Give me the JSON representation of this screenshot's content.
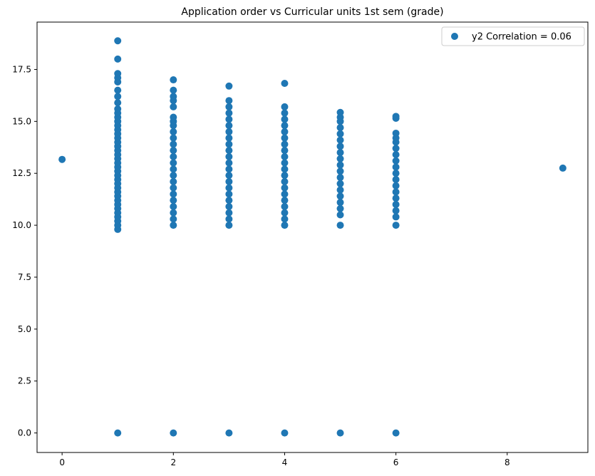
{
  "chart_data": {
    "type": "scatter",
    "title": "Application order vs Curricular units 1st sem (grade)",
    "xlabel": "",
    "ylabel": "",
    "xlim": [
      -0.45,
      9.45
    ],
    "ylim": [
      -0.94,
      19.78
    ],
    "xticks": [
      0,
      2,
      4,
      6,
      8
    ],
    "xtick_labels": [
      "0",
      "2",
      "4",
      "6",
      "8"
    ],
    "yticks": [
      0.0,
      2.5,
      5.0,
      7.5,
      10.0,
      12.5,
      15.0,
      17.5
    ],
    "ytick_labels": [
      "0.0",
      "2.5",
      "5.0",
      "7.5",
      "10.0",
      "12.5",
      "15.0",
      "17.5"
    ],
    "grid": false,
    "legend_position": "top-right",
    "series": [
      {
        "name": "y2 Correlation = 0.06",
        "color": "#1f77b4",
        "points": [
          [
            0,
            13.17
          ],
          [
            1,
            0.0
          ],
          [
            1,
            9.8
          ],
          [
            1,
            10.0
          ],
          [
            1,
            10.2
          ],
          [
            1,
            10.4
          ],
          [
            1,
            10.6
          ],
          [
            1,
            10.8
          ],
          [
            1,
            11.0
          ],
          [
            1,
            11.2
          ],
          [
            1,
            11.4
          ],
          [
            1,
            11.6
          ],
          [
            1,
            11.8
          ],
          [
            1,
            12.0
          ],
          [
            1,
            12.2
          ],
          [
            1,
            12.4
          ],
          [
            1,
            12.6
          ],
          [
            1,
            12.8
          ],
          [
            1,
            13.0
          ],
          [
            1,
            13.2
          ],
          [
            1,
            13.4
          ],
          [
            1,
            13.6
          ],
          [
            1,
            13.8
          ],
          [
            1,
            14.0
          ],
          [
            1,
            14.2
          ],
          [
            1,
            14.4
          ],
          [
            1,
            14.6
          ],
          [
            1,
            14.8
          ],
          [
            1,
            15.0
          ],
          [
            1,
            15.2
          ],
          [
            1,
            15.4
          ],
          [
            1,
            15.6
          ],
          [
            1,
            15.9
          ],
          [
            1,
            16.2
          ],
          [
            1,
            16.5
          ],
          [
            1,
            16.9
          ],
          [
            1,
            17.1
          ],
          [
            1,
            17.3
          ],
          [
            1,
            18.0
          ],
          [
            1,
            18.88
          ],
          [
            2,
            0.0
          ],
          [
            2,
            10.0
          ],
          [
            2,
            10.3
          ],
          [
            2,
            10.6
          ],
          [
            2,
            10.9
          ],
          [
            2,
            11.2
          ],
          [
            2,
            11.5
          ],
          [
            2,
            11.8
          ],
          [
            2,
            12.1
          ],
          [
            2,
            12.4
          ],
          [
            2,
            12.7
          ],
          [
            2,
            13.0
          ],
          [
            2,
            13.3
          ],
          [
            2,
            13.6
          ],
          [
            2,
            13.9
          ],
          [
            2,
            14.2
          ],
          [
            2,
            14.5
          ],
          [
            2,
            14.8
          ],
          [
            2,
            15.0
          ],
          [
            2,
            15.2
          ],
          [
            2,
            15.7
          ],
          [
            2,
            16.0
          ],
          [
            2,
            16.2
          ],
          [
            2,
            16.5
          ],
          [
            2,
            17.0
          ],
          [
            3,
            0.0
          ],
          [
            3,
            10.0
          ],
          [
            3,
            10.3
          ],
          [
            3,
            10.6
          ],
          [
            3,
            10.9
          ],
          [
            3,
            11.2
          ],
          [
            3,
            11.5
          ],
          [
            3,
            11.8
          ],
          [
            3,
            12.1
          ],
          [
            3,
            12.4
          ],
          [
            3,
            12.7
          ],
          [
            3,
            13.0
          ],
          [
            3,
            13.3
          ],
          [
            3,
            13.6
          ],
          [
            3,
            13.9
          ],
          [
            3,
            14.2
          ],
          [
            3,
            14.5
          ],
          [
            3,
            14.8
          ],
          [
            3,
            15.1
          ],
          [
            3,
            15.4
          ],
          [
            3,
            15.7
          ],
          [
            3,
            16.0
          ],
          [
            3,
            16.7
          ],
          [
            4,
            0.0
          ],
          [
            4,
            10.0
          ],
          [
            4,
            10.3
          ],
          [
            4,
            10.6
          ],
          [
            4,
            10.9
          ],
          [
            4,
            11.2
          ],
          [
            4,
            11.5
          ],
          [
            4,
            11.8
          ],
          [
            4,
            12.1
          ],
          [
            4,
            12.4
          ],
          [
            4,
            12.7
          ],
          [
            4,
            13.0
          ],
          [
            4,
            13.3
          ],
          [
            4,
            13.6
          ],
          [
            4,
            13.9
          ],
          [
            4,
            14.2
          ],
          [
            4,
            14.5
          ],
          [
            4,
            14.8
          ],
          [
            4,
            15.1
          ],
          [
            4,
            15.4
          ],
          [
            4,
            15.7
          ],
          [
            4,
            16.83
          ],
          [
            5,
            0.0
          ],
          [
            5,
            10.0
          ],
          [
            5,
            10.5
          ],
          [
            5,
            10.8
          ],
          [
            5,
            11.1
          ],
          [
            5,
            11.4
          ],
          [
            5,
            11.7
          ],
          [
            5,
            12.0
          ],
          [
            5,
            12.3
          ],
          [
            5,
            12.6
          ],
          [
            5,
            12.9
          ],
          [
            5,
            13.2
          ],
          [
            5,
            13.5
          ],
          [
            5,
            13.8
          ],
          [
            5,
            14.1
          ],
          [
            5,
            14.4
          ],
          [
            5,
            14.7
          ],
          [
            5,
            15.0
          ],
          [
            5,
            15.2
          ],
          [
            5,
            15.43
          ],
          [
            6,
            0.0
          ],
          [
            6,
            10.0
          ],
          [
            6,
            10.4
          ],
          [
            6,
            10.7
          ],
          [
            6,
            11.0
          ],
          [
            6,
            11.3
          ],
          [
            6,
            11.6
          ],
          [
            6,
            11.9
          ],
          [
            6,
            12.2
          ],
          [
            6,
            12.5
          ],
          [
            6,
            12.8
          ],
          [
            6,
            13.1
          ],
          [
            6,
            13.4
          ],
          [
            6,
            13.7
          ],
          [
            6,
            14.0
          ],
          [
            6,
            14.2
          ],
          [
            6,
            14.43
          ],
          [
            6,
            15.15
          ],
          [
            6,
            15.24
          ],
          [
            9,
            12.75
          ]
        ]
      }
    ]
  }
}
